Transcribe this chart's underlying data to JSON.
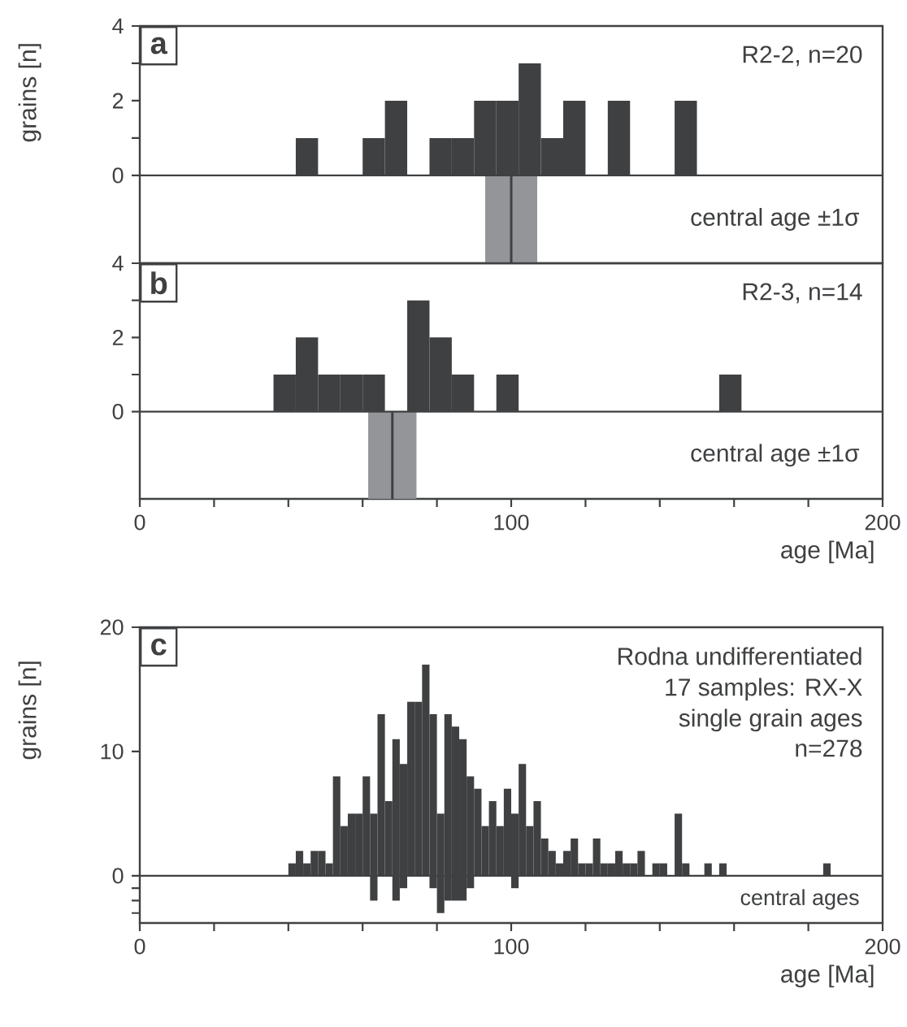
{
  "chart_data": [
    {
      "type": "histogram",
      "title": "a",
      "ylabel": "grains [n]",
      "color": "#3f4042",
      "bins": [
        42,
        48,
        54,
        60,
        66,
        72,
        78,
        84,
        90,
        96,
        102,
        108,
        114,
        120,
        126,
        132,
        138,
        144,
        150
      ],
      "values": [
        1,
        0,
        0,
        1,
        2,
        0,
        1,
        1,
        2,
        2,
        3,
        1,
        2,
        0,
        2,
        0,
        0,
        2
      ],
      "xlim": [
        0,
        200
      ],
      "ylim": [
        -2.35,
        4
      ],
      "yticks": [
        0,
        {
          "value": 1,
          "label": null
        },
        2,
        {
          "value": 3,
          "label": null
        },
        4
      ],
      "tick_labels": "y",
      "bands": [
        {
          "axis": "x",
          "from": 93,
          "to": 107,
          "color": "#939598"
        }
      ],
      "ref_lines": [
        {
          "axis": "x",
          "value": 100,
          "color": "#3f4042"
        }
      ],
      "annotations": [
        "R2-2, n=20",
        "central age ±1σ"
      ]
    },
    {
      "type": "histogram",
      "title": "b",
      "xlabel": "age [Ma]",
      "color": "#3f4042",
      "bins": [
        36,
        42,
        48,
        54,
        60,
        66,
        72,
        78,
        84,
        90,
        96,
        102,
        108,
        114,
        120,
        126,
        132,
        138,
        144,
        150,
        156,
        162
      ],
      "values": [
        1,
        2,
        1,
        1,
        1,
        0,
        3,
        2,
        1,
        0,
        1,
        0,
        0,
        0,
        0,
        0,
        0,
        0,
        0,
        0,
        1
      ],
      "xlim": [
        0,
        200
      ],
      "ylim": [
        -2.35,
        4
      ],
      "xticks": [
        0,
        {
          "value": 20,
          "label": null
        },
        {
          "value": 40,
          "label": null
        },
        {
          "value": 60,
          "label": null
        },
        {
          "value": 80,
          "label": null
        },
        100,
        {
          "value": 120,
          "label": null
        },
        {
          "value": 140,
          "label": null
        },
        {
          "value": 160,
          "label": null
        },
        {
          "value": 180,
          "label": null
        },
        200
      ],
      "yticks": [
        0,
        {
          "value": 1,
          "label": null
        },
        2,
        {
          "value": 3,
          "label": null
        },
        4
      ],
      "bands": [
        {
          "axis": "x",
          "from": 61.5,
          "to": 74.5,
          "color": "#939598"
        }
      ],
      "ref_lines": [
        {
          "axis": "x",
          "value": 68,
          "color": "#3f4042"
        }
      ],
      "annotations": [
        "R2-3, n=14",
        "central age ±1σ"
      ]
    },
    {
      "type": "histogram",
      "title": "c",
      "xlabel": "age [Ma]",
      "ylabel": "grains [n]",
      "bins": [
        40,
        42,
        44,
        46,
        48,
        50,
        52,
        54,
        56,
        58,
        60,
        62,
        64,
        66,
        68,
        70,
        72,
        74,
        76,
        78,
        80,
        82,
        84,
        86,
        88,
        90,
        92,
        94,
        96,
        98,
        100,
        102,
        104,
        106,
        108,
        110,
        112,
        114,
        116,
        118,
        120,
        122,
        124,
        126,
        128,
        130,
        132,
        134,
        136,
        138,
        140,
        142,
        144,
        146,
        148,
        150,
        152,
        154,
        156,
        158,
        160,
        162,
        164,
        166,
        168,
        170,
        172,
        174,
        176,
        178,
        180,
        182,
        184,
        186
      ],
      "series": [
        {
          "color": "#3f4042",
          "values": [
            1,
            2,
            1,
            2,
            2,
            1,
            8,
            4,
            5,
            5,
            8,
            5,
            13,
            6,
            11,
            9,
            14,
            14,
            17,
            13,
            5,
            13,
            12,
            11,
            8,
            7,
            4,
            6,
            4,
            7,
            5,
            9,
            4,
            6,
            3,
            2,
            1,
            2,
            3,
            1,
            1,
            3,
            1,
            1,
            2,
            1,
            1,
            2,
            0,
            1,
            1,
            0,
            5,
            1,
            0,
            0,
            1,
            0,
            1,
            0,
            0,
            0,
            0,
            0,
            0,
            0,
            0,
            0,
            0,
            0,
            0,
            0,
            1
          ]
        },
        {
          "color": "#3f4042",
          "values": [
            0,
            0,
            0,
            0,
            0,
            0,
            0,
            0,
            0,
            0,
            0,
            -2,
            0,
            0,
            -2,
            -1,
            0,
            0,
            0,
            -1,
            -3,
            -2,
            -2,
            -2,
            -1,
            0,
            0,
            0,
            0,
            0,
            -1,
            0,
            0,
            0,
            0,
            0,
            0,
            0,
            0,
            0,
            0,
            0,
            0,
            0,
            0,
            0,
            0,
            0,
            0,
            0,
            0,
            0,
            0,
            0,
            0,
            0,
            0,
            0,
            0,
            0,
            0,
            0,
            0,
            0,
            0,
            0,
            0,
            0,
            0,
            0,
            0,
            0,
            0
          ]
        }
      ],
      "xlim": [
        0,
        200
      ],
      "ylim": [
        -3.8,
        20
      ],
      "xticks": [
        0,
        {
          "value": 20,
          "label": null
        },
        {
          "value": 40,
          "label": null
        },
        {
          "value": 60,
          "label": null
        },
        {
          "value": 80,
          "label": null
        },
        100,
        {
          "value": 120,
          "label": null
        },
        {
          "value": 140,
          "label": null
        },
        {
          "value": 160,
          "label": null
        },
        {
          "value": 180,
          "label": null
        },
        200
      ],
      "yticks": [
        {
          "value": -3,
          "label": null
        },
        {
          "value": -2,
          "label": null
        },
        {
          "value": -1,
          "label": null
        },
        0,
        10,
        20
      ],
      "annotations": [
        "Rodna undifferentiated",
        "17 samples: RX-X",
        "single grain ages",
        "n=278",
        "central ages"
      ]
    }
  ]
}
